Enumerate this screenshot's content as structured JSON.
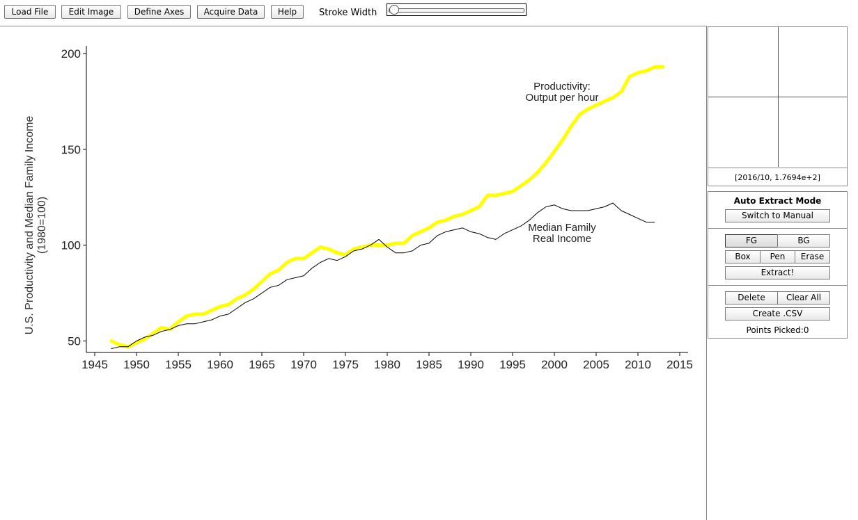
{
  "toolbar": {
    "load_file": "Load File",
    "edit_image": "Edit Image",
    "define_axes": "Define Axes",
    "acquire_data": "Acquire Data",
    "help": "Help",
    "stroke_width_label": "Stroke Width"
  },
  "zoom": {
    "coordinates": "[2016/10, 1.7694e+2]"
  },
  "panel": {
    "mode_title": "Auto Extract Mode",
    "switch_manual": "Switch to Manual",
    "fg": "FG",
    "bg": "BG",
    "box": "Box",
    "pen": "Pen",
    "erase": "Erase",
    "extract": "Extract!",
    "delete": "Delete",
    "clear_all": "Clear All",
    "create_csv": "Create .CSV",
    "points_picked": "Points Picked:0"
  },
  "colors": {
    "highlight": "#ffff00",
    "line": "#000000"
  },
  "chart_data": {
    "type": "line",
    "ylabel_line1": "U.S. Productivity and Median Family Income",
    "ylabel_line2": "(1980=100)",
    "xlabel": "",
    "xlim": [
      1944,
      2016
    ],
    "ylim": [
      44,
      204
    ],
    "x_ticks": [
      1945,
      1950,
      1955,
      1960,
      1965,
      1970,
      1975,
      1980,
      1985,
      1990,
      1995,
      2000,
      2005,
      2010,
      2015
    ],
    "y_ticks": [
      50,
      100,
      150,
      200
    ],
    "annotations": {
      "productivity_line1": "Productivity:",
      "productivity_line2": "Output per hour",
      "income_line1": "Median Family",
      "income_line2": "Real Income"
    },
    "series": [
      {
        "name": "Productivity: Output per hour",
        "style": "yellow-highlight",
        "x": [
          1947,
          1948,
          1949,
          1950,
          1951,
          1952,
          1953,
          1954,
          1955,
          1956,
          1957,
          1958,
          1959,
          1960,
          1961,
          1962,
          1963,
          1964,
          1965,
          1966,
          1967,
          1968,
          1969,
          1970,
          1971,
          1972,
          1973,
          1974,
          1975,
          1976,
          1977,
          1978,
          1979,
          1980,
          1981,
          1982,
          1983,
          1984,
          1985,
          1986,
          1987,
          1988,
          1989,
          1990,
          1991,
          1992,
          1993,
          1994,
          1995,
          1996,
          1997,
          1998,
          1999,
          2000,
          2001,
          2002,
          2003,
          2004,
          2005,
          2006,
          2007,
          2008,
          2009,
          2010,
          2011,
          2012,
          2013
        ],
        "y": [
          50,
          48,
          47,
          49,
          51,
          54,
          57,
          56,
          60,
          63,
          64,
          64,
          66,
          68,
          69,
          72,
          74,
          77,
          81,
          85,
          87,
          91,
          93,
          93,
          96,
          99,
          98,
          96,
          95,
          98,
          99,
          100,
          100,
          100,
          101,
          101,
          105,
          107,
          109,
          112,
          113,
          115,
          116,
          118,
          120,
          126,
          126,
          127,
          128,
          131,
          134,
          138,
          143,
          149,
          155,
          162,
          168,
          171,
          173,
          175,
          177,
          180,
          188,
          190,
          191,
          193,
          193
        ]
      },
      {
        "name": "Median Family Real Income",
        "style": "thin-black",
        "x": [
          1947,
          1948,
          1949,
          1950,
          1951,
          1952,
          1953,
          1954,
          1955,
          1956,
          1957,
          1958,
          1959,
          1960,
          1961,
          1962,
          1963,
          1964,
          1965,
          1966,
          1967,
          1968,
          1969,
          1970,
          1971,
          1972,
          1973,
          1974,
          1975,
          1976,
          1977,
          1978,
          1979,
          1980,
          1981,
          1982,
          1983,
          1984,
          1985,
          1986,
          1987,
          1988,
          1989,
          1990,
          1991,
          1992,
          1993,
          1994,
          1995,
          1996,
          1997,
          1998,
          1999,
          2000,
          2001,
          2002,
          2003,
          2004,
          2005,
          2006,
          2007,
          2008,
          2009,
          2010,
          2011,
          2012
        ],
        "y": [
          46,
          47,
          47,
          50,
          52,
          53,
          55,
          56,
          58,
          59,
          59,
          60,
          61,
          63,
          64,
          67,
          70,
          72,
          75,
          78,
          79,
          82,
          83,
          84,
          88,
          91,
          93,
          92,
          94,
          97,
          98,
          100,
          103,
          99,
          96,
          96,
          97,
          100,
          101,
          105,
          107,
          108,
          109,
          107,
          106,
          104,
          103,
          106,
          108,
          110,
          113,
          117,
          120,
          121,
          119,
          118,
          118,
          118,
          119,
          120,
          122,
          118,
          116,
          114,
          112,
          112
        ]
      }
    ]
  }
}
